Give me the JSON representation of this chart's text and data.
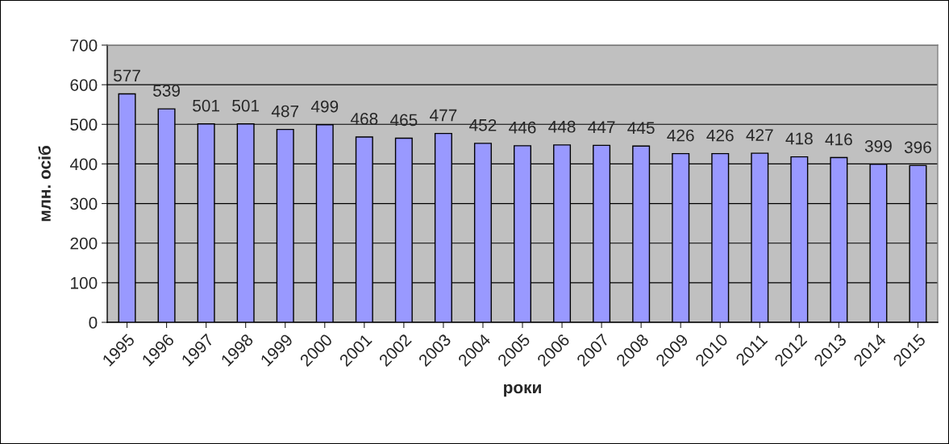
{
  "chart_data": {
    "type": "bar",
    "xlabel": "роки",
    "ylabel": "млн. осіб",
    "categories": [
      "1995",
      "1996",
      "1997",
      "1998",
      "1999",
      "2000",
      "2001",
      "2002",
      "2003",
      "2004",
      "2005",
      "2006",
      "2007",
      "2008",
      "2009",
      "2010",
      "2011",
      "2012",
      "2013",
      "2014",
      "2015"
    ],
    "values": [
      577,
      539,
      501,
      501,
      487,
      499,
      468,
      465,
      477,
      452,
      446,
      448,
      447,
      445,
      426,
      426,
      427,
      418,
      416,
      399,
      396
    ],
    "color": "#9999ff",
    "ylim": [
      0,
      700
    ],
    "yticks": [
      0,
      100,
      200,
      300,
      400,
      500,
      600,
      700
    ],
    "grid": "y",
    "data_labels": true,
    "legend": false
  }
}
